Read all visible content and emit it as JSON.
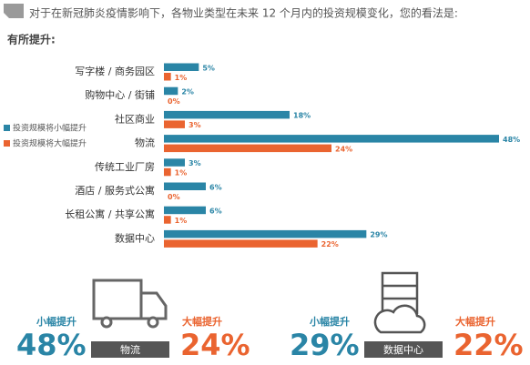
{
  "chart_data": {
    "type": "bar",
    "orientation": "horizontal",
    "title": "对于在新冠肺炎疫情影响下，各物业类型在未来 12 个月内的投资规模变化，您的看法是:",
    "subtitle": "有所提升:",
    "categories": [
      "写字楼 / 商务园区",
      "购物中心 / 街铺",
      "社区商业",
      "物流",
      "传统工业厂房",
      "酒店 / 服务式公寓",
      "长租公寓 / 共享公寓",
      "数据中心"
    ],
    "series": [
      {
        "name": "投资规模将小幅提升",
        "color": "#2a85a6",
        "values": [
          5,
          2,
          18,
          48,
          3,
          6,
          6,
          29
        ],
        "value_labels": [
          "5%",
          "2%",
          "18%",
          "48%",
          "3%",
          "6%",
          "6%",
          "29%"
        ]
      },
      {
        "name": "投资规模将大幅提升",
        "color": "#ea6430",
        "values": [
          1,
          0,
          3,
          24,
          1,
          0,
          1,
          22
        ],
        "value_labels": [
          "1%",
          "0%",
          "3%",
          "24%",
          "1%",
          "0%",
          "1%",
          "22%"
        ]
      }
    ],
    "xlim": [
      0,
      48
    ]
  },
  "highlights": [
    {
      "small_label": "小幅提升",
      "small_value": "48%",
      "category": "物流",
      "large_label": "大幅提升",
      "large_value": "24%"
    },
    {
      "small_label": "小幅提升",
      "small_value": "29%",
      "category": "数据中心",
      "large_label": "大幅提升",
      "large_value": "22%"
    }
  ]
}
